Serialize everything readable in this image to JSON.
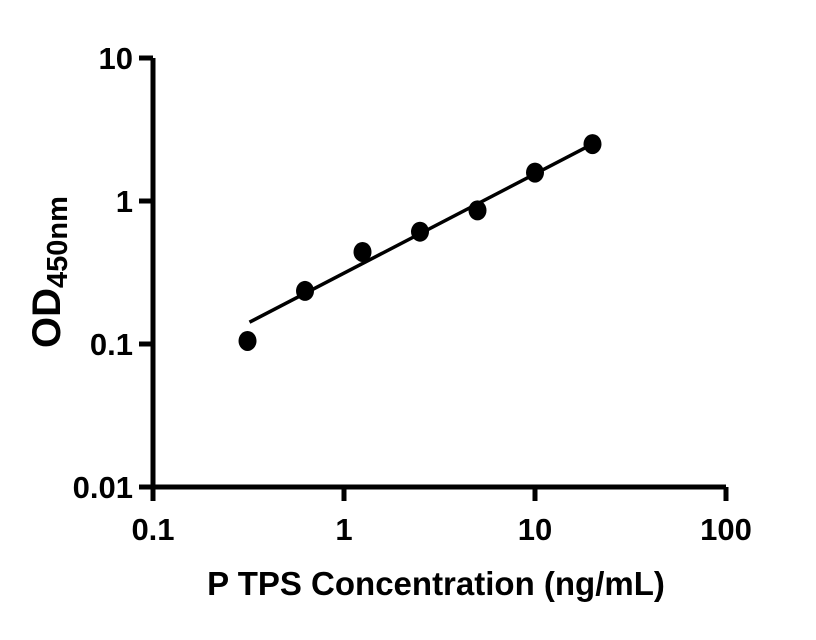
{
  "page": {
    "background_color": "#ffffff",
    "ink_color": "#000000"
  },
  "chart_data": {
    "type": "scatter",
    "title": "",
    "xlabel": "P TPS Concentration (ng/mL)",
    "ylabel_main": "OD",
    "ylabel_sub": "450nm",
    "x_scale": "log",
    "y_scale": "log",
    "xlim": [
      0.1,
      100
    ],
    "ylim": [
      0.01,
      10
    ],
    "x_tick_labels": [
      "0.1",
      "1",
      "10",
      "100"
    ],
    "y_tick_labels": [
      "0.01",
      "0.1",
      "1",
      "10"
    ],
    "grid": false,
    "legend": "none",
    "series": [
      {
        "name": "standard-curve-points",
        "marker": "filled-circle",
        "color": "#000000",
        "x": [
          0.3125,
          0.625,
          1.25,
          2.5,
          5,
          10,
          20
        ],
        "y": [
          0.105,
          0.235,
          0.44,
          0.61,
          0.86,
          1.58,
          2.5
        ]
      }
    ],
    "fit_line": {
      "color": "#000000",
      "from": {
        "x": 0.32,
        "y": 0.142
      },
      "to": {
        "x": 20.1,
        "y": 2.51
      }
    }
  }
}
